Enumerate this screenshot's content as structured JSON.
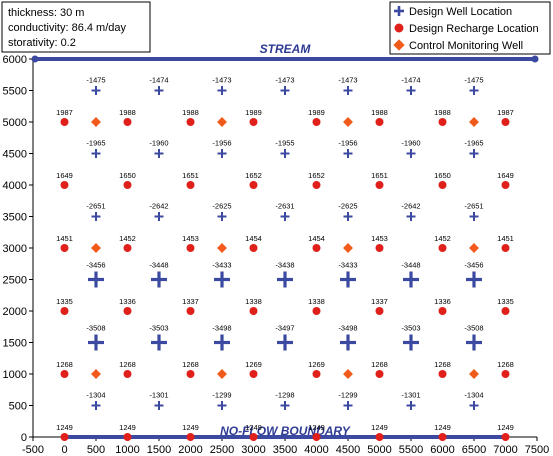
{
  "chart_data": {
    "type": "scatter",
    "xlim": [
      -500,
      7500
    ],
    "ylim": [
      0,
      6000
    ],
    "x_ticks": [
      -500,
      0,
      500,
      1000,
      1500,
      2000,
      2500,
      3000,
      3500,
      4000,
      4500,
      5000,
      5500,
      6000,
      6500,
      7000,
      7500
    ],
    "y_ticks": [
      0,
      500,
      1000,
      1500,
      2000,
      2500,
      3000,
      3500,
      4000,
      4500,
      5000,
      5500,
      6000
    ],
    "grid": false,
    "legend_position": "top-right",
    "info_lines": [
      "thickness: 30 m",
      "conductivity: 86.4 m/day",
      "storativity: 0.2"
    ],
    "boundaries": {
      "top": {
        "label": "STREAM",
        "y": 6000
      },
      "bottom": {
        "label": "NO-FLOW BOUNDARY",
        "y": 0
      }
    },
    "colors": {
      "well": "#3b4aa0",
      "recharge": "#e0201b",
      "monitor": "#f05a1a",
      "boundary": "#3b4aa0"
    },
    "legend": [
      "Design Well Location",
      "Design Recharge Location",
      "Control Monitoring Well"
    ],
    "series": [
      {
        "name": "Design Well Location",
        "marker": "plus",
        "points": [
          {
            "x": 500,
            "y": 5500,
            "label": "-1475"
          },
          {
            "x": 1500,
            "y": 5500,
            "label": "-1474"
          },
          {
            "x": 2500,
            "y": 5500,
            "label": "-1473"
          },
          {
            "x": 3500,
            "y": 5500,
            "label": "-1473"
          },
          {
            "x": 4500,
            "y": 5500,
            "label": "-1473"
          },
          {
            "x": 5500,
            "y": 5500,
            "label": "-1474"
          },
          {
            "x": 6500,
            "y": 5500,
            "label": "-1475"
          },
          {
            "x": 500,
            "y": 4500,
            "label": "-1965"
          },
          {
            "x": 1500,
            "y": 4500,
            "label": "-1960"
          },
          {
            "x": 2500,
            "y": 4500,
            "label": "-1956"
          },
          {
            "x": 3500,
            "y": 4500,
            "label": "-1955"
          },
          {
            "x": 4500,
            "y": 4500,
            "label": "-1956"
          },
          {
            "x": 5500,
            "y": 4500,
            "label": "-1960"
          },
          {
            "x": 6500,
            "y": 4500,
            "label": "-1965"
          },
          {
            "x": 500,
            "y": 3500,
            "label": "-2651"
          },
          {
            "x": 1500,
            "y": 3500,
            "label": "-2642"
          },
          {
            "x": 2500,
            "y": 3500,
            "label": "-2625"
          },
          {
            "x": 3500,
            "y": 3500,
            "label": "-2631"
          },
          {
            "x": 4500,
            "y": 3500,
            "label": "-2625"
          },
          {
            "x": 5500,
            "y": 3500,
            "label": "-2642"
          },
          {
            "x": 6500,
            "y": 3500,
            "label": "-2651"
          },
          {
            "x": 500,
            "y": 2500,
            "label": "-3456"
          },
          {
            "x": 1500,
            "y": 2500,
            "label": "-3448"
          },
          {
            "x": 2500,
            "y": 2500,
            "label": "-3433"
          },
          {
            "x": 3500,
            "y": 2500,
            "label": "-3438"
          },
          {
            "x": 4500,
            "y": 2500,
            "label": "-3433"
          },
          {
            "x": 5500,
            "y": 2500,
            "label": "-3448"
          },
          {
            "x": 6500,
            "y": 2500,
            "label": "-3456"
          },
          {
            "x": 500,
            "y": 1500,
            "label": "-3508"
          },
          {
            "x": 1500,
            "y": 1500,
            "label": "-3503"
          },
          {
            "x": 2500,
            "y": 1500,
            "label": "-3498"
          },
          {
            "x": 3500,
            "y": 1500,
            "label": "-3497"
          },
          {
            "x": 4500,
            "y": 1500,
            "label": "-3498"
          },
          {
            "x": 5500,
            "y": 1500,
            "label": "-3503"
          },
          {
            "x": 6500,
            "y": 1500,
            "label": "-3508"
          },
          {
            "x": 500,
            "y": 500,
            "label": "-1304"
          },
          {
            "x": 1500,
            "y": 500,
            "label": "-1301"
          },
          {
            "x": 2500,
            "y": 500,
            "label": "-1299"
          },
          {
            "x": 3500,
            "y": 500,
            "label": "-1298"
          },
          {
            "x": 4500,
            "y": 500,
            "label": "-1299"
          },
          {
            "x": 5500,
            "y": 500,
            "label": "-1301"
          },
          {
            "x": 6500,
            "y": 500,
            "label": "-1304"
          }
        ]
      },
      {
        "name": "Design Recharge Location",
        "marker": "circle",
        "points": [
          {
            "x": 0,
            "y": 5000,
            "label": "1987"
          },
          {
            "x": 1000,
            "y": 5000,
            "label": "1988"
          },
          {
            "x": 2000,
            "y": 5000,
            "label": "1988"
          },
          {
            "x": 3000,
            "y": 5000,
            "label": "1989"
          },
          {
            "x": 4000,
            "y": 5000,
            "label": "1989"
          },
          {
            "x": 5000,
            "y": 5000,
            "label": "1988"
          },
          {
            "x": 6000,
            "y": 5000,
            "label": "1988"
          },
          {
            "x": 7000,
            "y": 5000,
            "label": "1987"
          },
          {
            "x": 0,
            "y": 4000,
            "label": "1649"
          },
          {
            "x": 1000,
            "y": 4000,
            "label": "1650"
          },
          {
            "x": 2000,
            "y": 4000,
            "label": "1651"
          },
          {
            "x": 3000,
            "y": 4000,
            "label": "1652"
          },
          {
            "x": 4000,
            "y": 4000,
            "label": "1652"
          },
          {
            "x": 5000,
            "y": 4000,
            "label": "1651"
          },
          {
            "x": 6000,
            "y": 4000,
            "label": "1650"
          },
          {
            "x": 7000,
            "y": 4000,
            "label": "1649"
          },
          {
            "x": 0,
            "y": 3000,
            "label": "1451"
          },
          {
            "x": 1000,
            "y": 3000,
            "label": "1452"
          },
          {
            "x": 2000,
            "y": 3000,
            "label": "1453"
          },
          {
            "x": 3000,
            "y": 3000,
            "label": "1454"
          },
          {
            "x": 4000,
            "y": 3000,
            "label": "1454"
          },
          {
            "x": 5000,
            "y": 3000,
            "label": "1453"
          },
          {
            "x": 6000,
            "y": 3000,
            "label": "1452"
          },
          {
            "x": 7000,
            "y": 3000,
            "label": "1451"
          },
          {
            "x": 0,
            "y": 2000,
            "label": "1335"
          },
          {
            "x": 1000,
            "y": 2000,
            "label": "1336"
          },
          {
            "x": 2000,
            "y": 2000,
            "label": "1337"
          },
          {
            "x": 3000,
            "y": 2000,
            "label": "1338"
          },
          {
            "x": 4000,
            "y": 2000,
            "label": "1338"
          },
          {
            "x": 5000,
            "y": 2000,
            "label": "1337"
          },
          {
            "x": 6000,
            "y": 2000,
            "label": "1336"
          },
          {
            "x": 7000,
            "y": 2000,
            "label": "1335"
          },
          {
            "x": 0,
            "y": 1000,
            "label": "1268"
          },
          {
            "x": 1000,
            "y": 1000,
            "label": "1268"
          },
          {
            "x": 2000,
            "y": 1000,
            "label": "1268"
          },
          {
            "x": 3000,
            "y": 1000,
            "label": "1269"
          },
          {
            "x": 4000,
            "y": 1000,
            "label": "1269"
          },
          {
            "x": 5000,
            "y": 1000,
            "label": "1268"
          },
          {
            "x": 6000,
            "y": 1000,
            "label": "1268"
          },
          {
            "x": 7000,
            "y": 1000,
            "label": "1268"
          },
          {
            "x": 0,
            "y": 0,
            "label": "1249"
          },
          {
            "x": 1000,
            "y": 0,
            "label": "1249"
          },
          {
            "x": 2000,
            "y": 0,
            "label": "1249"
          },
          {
            "x": 3000,
            "y": 0,
            "label": "1249"
          },
          {
            "x": 4000,
            "y": 0,
            "label": "1249"
          },
          {
            "x": 5000,
            "y": 0,
            "label": "1249"
          },
          {
            "x": 6000,
            "y": 0,
            "label": "1249"
          },
          {
            "x": 7000,
            "y": 0,
            "label": "1249"
          }
        ]
      },
      {
        "name": "Control Monitoring Well",
        "marker": "diamond",
        "points": [
          {
            "x": 500,
            "y": 5000
          },
          {
            "x": 2500,
            "y": 5000
          },
          {
            "x": 4500,
            "y": 5000
          },
          {
            "x": 6500,
            "y": 5000
          },
          {
            "x": 500,
            "y": 3000
          },
          {
            "x": 2500,
            "y": 3000
          },
          {
            "x": 4500,
            "y": 3000
          },
          {
            "x": 6500,
            "y": 3000
          },
          {
            "x": 500,
            "y": 1000
          },
          {
            "x": 2500,
            "y": 1000
          },
          {
            "x": 4500,
            "y": 1000
          },
          {
            "x": 6500,
            "y": 1000
          }
        ]
      }
    ]
  }
}
